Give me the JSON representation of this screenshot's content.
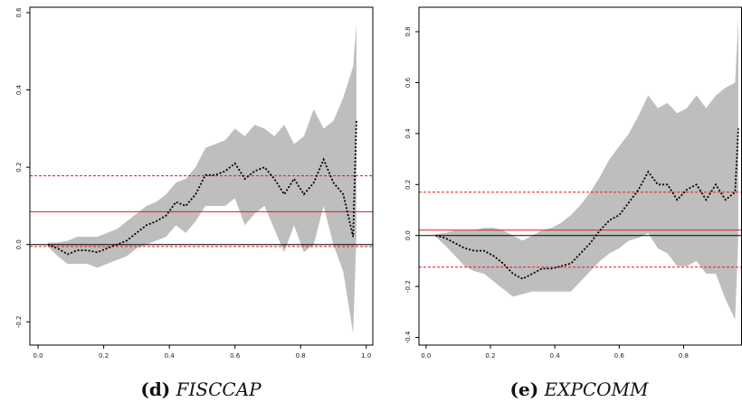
{
  "chart_data": [
    {
      "type": "line",
      "label": "(d)",
      "title": "FISCCAP",
      "x": [
        0.03,
        0.06,
        0.09,
        0.12,
        0.15,
        0.18,
        0.21,
        0.24,
        0.27,
        0.3,
        0.33,
        0.36,
        0.39,
        0.42,
        0.45,
        0.48,
        0.51,
        0.54,
        0.57,
        0.6,
        0.63,
        0.66,
        0.69,
        0.72,
        0.75,
        0.78,
        0.81,
        0.84,
        0.87,
        0.9,
        0.93,
        0.96,
        0.97
      ],
      "series": [
        {
          "color": "#000000",
          "values": [
            0,
            -0.01,
            -0.025,
            -0.015,
            -0.015,
            -0.02,
            -0.01,
            0,
            0.01,
            0.03,
            0.05,
            0.06,
            0.075,
            0.11,
            0.1,
            0.13,
            0.18,
            0.18,
            0.19,
            0.21,
            0.17,
            0.19,
            0.2,
            0.17,
            0.13,
            0.17,
            0.13,
            0.16,
            0.22,
            0.16,
            0.13,
            0.02,
            0.32
          ]
        }
      ],
      "band": {
        "color": "#bebebe",
        "upper": [
          0.005,
          0.005,
          0.01,
          0.02,
          0.02,
          0.02,
          0.03,
          0.04,
          0.06,
          0.08,
          0.1,
          0.11,
          0.13,
          0.16,
          0.17,
          0.2,
          0.25,
          0.26,
          0.27,
          0.3,
          0.28,
          0.31,
          0.3,
          0.28,
          0.31,
          0.26,
          0.28,
          0.35,
          0.3,
          0.32,
          0.38,
          0.46,
          0.57
        ],
        "lower": [
          -0.005,
          -0.03,
          -0.05,
          -0.05,
          -0.05,
          -0.06,
          -0.05,
          -0.04,
          -0.03,
          -0.01,
          0,
          0.01,
          0.02,
          0.05,
          0.03,
          0.06,
          0.1,
          0.1,
          0.1,
          0.12,
          0.05,
          0.08,
          0.1,
          0.04,
          -0.02,
          0.05,
          -0.02,
          0,
          0.1,
          0,
          -0.07,
          -0.23,
          0.02
        ]
      },
      "reference_lines": [
        {
          "value": 0,
          "color": "#000000",
          "dashed": false
        },
        {
          "value": 0.085,
          "color": "#e31a1c",
          "dashed": false
        },
        {
          "value": 0.178,
          "color": "#e31a1c",
          "dashed": true
        },
        {
          "value": -0.005,
          "color": "#e31a1c",
          "dashed": true
        }
      ],
      "xlim": [
        -0.025,
        1.02
      ],
      "ylim": [
        -0.26,
        0.614
      ],
      "xticks": [
        {
          "value": 0,
          "label": "0.0"
        },
        0.2,
        0.4,
        0.6,
        0.8,
        {
          "value": 1,
          "label": "1.0"
        }
      ],
      "yticks": [
        -0.2,
        {
          "value": 0,
          "label": "0.0"
        },
        0.2,
        0.4,
        0.6
      ]
    },
    {
      "type": "line",
      "label": "(e)",
      "title": "EXPCOMM",
      "x": [
        0.03,
        0.06,
        0.09,
        0.12,
        0.15,
        0.18,
        0.21,
        0.24,
        0.27,
        0.3,
        0.33,
        0.36,
        0.39,
        0.42,
        0.45,
        0.48,
        0.51,
        0.54,
        0.57,
        0.6,
        0.63,
        0.66,
        0.69,
        0.72,
        0.75,
        0.78,
        0.81,
        0.84,
        0.87,
        0.9,
        0.93,
        0.96,
        0.97
      ],
      "series": [
        {
          "color": "#000000",
          "values": [
            0,
            -0.01,
            -0.03,
            -0.05,
            -0.06,
            -0.06,
            -0.08,
            -0.11,
            -0.15,
            -0.17,
            -0.15,
            -0.13,
            -0.13,
            -0.12,
            -0.11,
            -0.07,
            -0.03,
            0.02,
            0.06,
            0.08,
            0.13,
            0.18,
            0.25,
            0.2,
            0.2,
            0.14,
            0.18,
            0.2,
            0.14,
            0.2,
            0.14,
            0.17,
            0.42
          ]
        }
      ],
      "band": {
        "color": "#bebebe",
        "upper": [
          0.005,
          0.01,
          0.02,
          0.02,
          0.02,
          0.03,
          0.03,
          0.02,
          0,
          -0.02,
          0,
          0.02,
          0.03,
          0.05,
          0.08,
          0.12,
          0.17,
          0.23,
          0.3,
          0.35,
          0.4,
          0.47,
          0.55,
          0.5,
          0.52,
          0.48,
          0.5,
          0.55,
          0.5,
          0.55,
          0.58,
          0.6,
          0.85
        ],
        "lower": [
          -0.005,
          -0.04,
          -0.08,
          -0.12,
          -0.14,
          -0.15,
          -0.18,
          -0.21,
          -0.24,
          -0.23,
          -0.22,
          -0.22,
          -0.22,
          -0.22,
          -0.22,
          -0.18,
          -0.14,
          -0.1,
          -0.07,
          -0.05,
          -0.02,
          -0.01,
          0.01,
          -0.05,
          -0.07,
          -0.12,
          -0.12,
          -0.1,
          -0.15,
          -0.15,
          -0.25,
          -0.33,
          0
        ]
      },
      "reference_lines": [
        {
          "value": 0,
          "color": "#000000",
          "dashed": false
        },
        {
          "value": 0.021,
          "color": "#e31a1c",
          "dashed": false
        },
        {
          "value": 0.17,
          "color": "#e31a1c",
          "dashed": true
        },
        {
          "value": -0.124,
          "color": "#e31a1c",
          "dashed": true
        }
      ],
      "xlim": [
        -0.022,
        0.98
      ],
      "ylim": [
        -0.43,
        0.896
      ],
      "xticks": [
        {
          "value": 0,
          "label": "0.0"
        },
        0.2,
        0.4,
        0.6,
        0.8
      ],
      "yticks": [
        -0.4,
        -0.2,
        {
          "value": 0,
          "label": "0.0"
        },
        0.2,
        0.4,
        0.6,
        0.8
      ]
    }
  ]
}
